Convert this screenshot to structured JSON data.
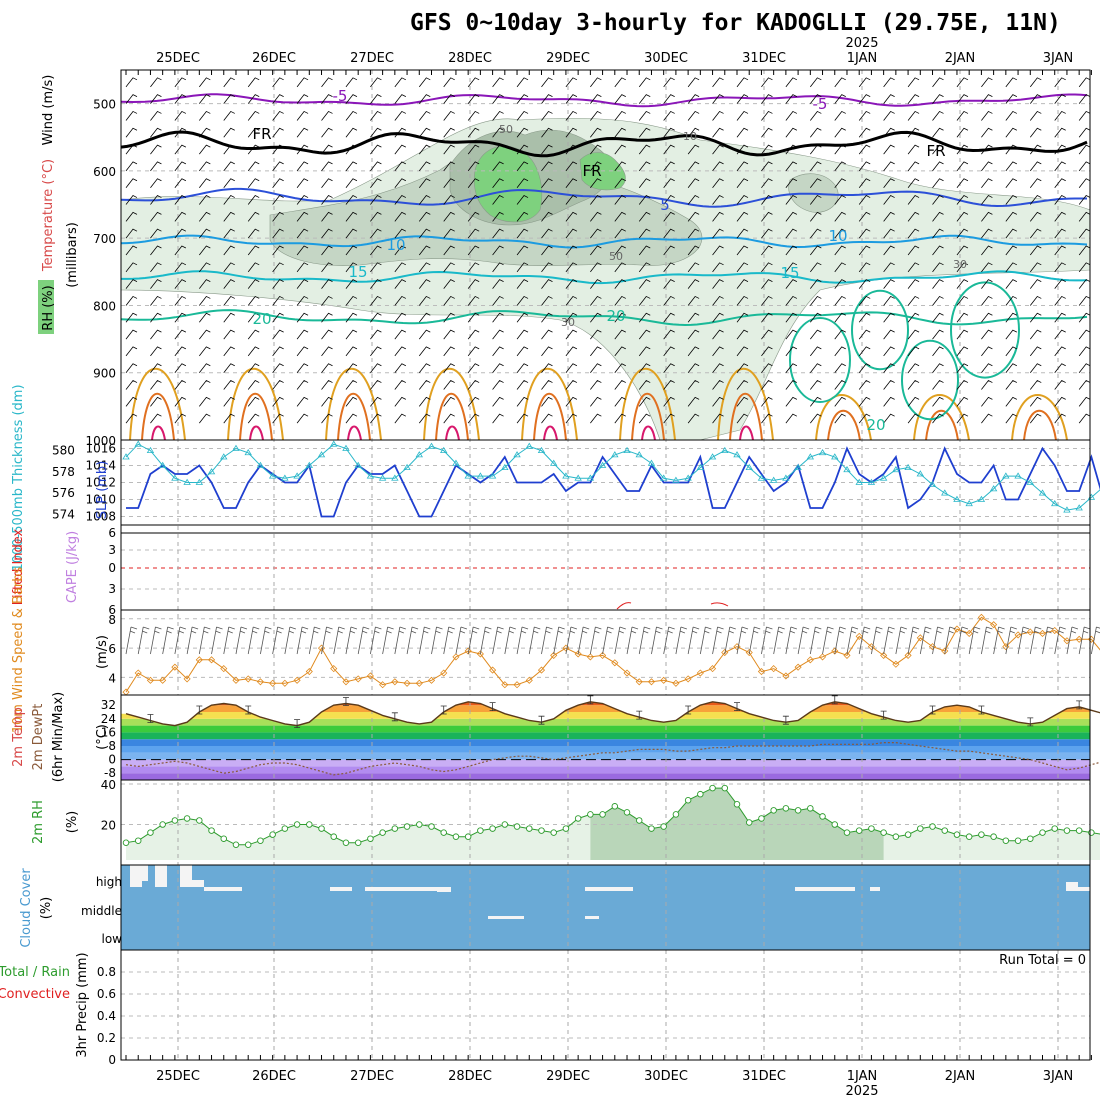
{
  "title": "GFS 0~10day 3-hourly for KADOGLLI (29.75E, 11N)",
  "year_label": "2025",
  "run_total": "Run Total = 0",
  "dates": [
    "25DEC",
    "26DEC",
    "27DEC",
    "28DEC",
    "29DEC",
    "30DEC",
    "31DEC",
    "1JAN",
    "2JAN",
    "3JAN"
  ],
  "panel_labels": {
    "sounding": [
      "Wind (m/s)",
      "Temperature (°C)",
      "RH (%)",
      "(millibars)"
    ],
    "slp": [
      "1000-500mb Thickness (dm)",
      "SLP (mb)"
    ],
    "cape": [
      "Lifted Index",
      "CAPE (J/kg)"
    ],
    "wind10": [
      "10m Wind Speed & Barbs",
      "(m/s)"
    ],
    "temp2m": [
      "2m Temp",
      "2m DewPt",
      "(6hr Min/Max)",
      "(°C)"
    ],
    "rh2m": [
      "2m RH",
      "(%)"
    ],
    "cloud": [
      "Cloud Cover",
      "(%)"
    ],
    "precip": [
      "Total / Rain",
      "Convective",
      "3hr Precip (mm)"
    ]
  },
  "colors": {
    "rh": "#7ed17e",
    "temp_contour": "#2c50d8",
    "freezing": "#000000",
    "slp": "#1f3fcf",
    "thickness": "#2ab7c9",
    "wind10": "#e08a1e",
    "rh2m": "#2e9c2e",
    "cloud": "#6aaad6",
    "lifted": "#e02020",
    "cape": "#c080e0"
  },
  "chart_data": [
    {
      "type": "heatmap",
      "name": "sounding",
      "y_axis": "pressure (millibars)",
      "ylim": [
        1000,
        450
      ],
      "yticks": [
        500,
        600,
        700,
        800,
        900,
        1000
      ],
      "contour_labels": [
        "-5",
        "FR",
        "-5",
        "FR",
        "FR",
        "5",
        "10",
        "10",
        "15",
        "15",
        "20",
        "20",
        "20",
        "50",
        "50",
        "30",
        "30",
        "10"
      ]
    },
    {
      "type": "line",
      "name": "thickness_slp",
      "ylim_thickness": [
        573,
        581
      ],
      "yticks_thickness": [
        "580",
        "578",
        "576",
        "574"
      ],
      "ylim_slp": [
        1007,
        1017
      ],
      "yticks_slp": [
        "1016",
        "1014",
        "1012",
        "1010",
        "1008"
      ],
      "series": [
        {
          "name": "SLP",
          "values": [
            1009,
            1009,
            1013,
            1014,
            1013,
            1013,
            1014,
            1012,
            1009,
            1009,
            1012,
            1014,
            1013,
            1012,
            1012,
            1014,
            1008,
            1008,
            1012,
            1014,
            1013,
            1013,
            1014,
            1011,
            1008,
            1008,
            1011,
            1014,
            1013,
            1012,
            1013,
            1015,
            1012,
            1012,
            1012,
            1013,
            1011,
            1012,
            1012,
            1015,
            1013,
            1011,
            1011,
            1014,
            1012,
            1012,
            1012,
            1015,
            1009,
            1009,
            1012,
            1015,
            1013,
            1011,
            1012,
            1014,
            1009,
            1009,
            1012,
            1016,
            1013,
            1012,
            1013,
            1015,
            1009,
            1010,
            1012,
            1016,
            1013,
            1012,
            1012,
            1014,
            1010,
            1010,
            1013,
            1016,
            1014,
            1011,
            1011,
            1015,
            1010,
            1010,
            1012,
            1016,
            1013,
            1012,
            1012,
            1014,
            1009,
            1010,
            1012,
            1015,
            1014,
            1011,
            1011,
            1015
          ]
        },
        {
          "name": "Thickness",
          "values": [
            579.4,
            580.6,
            580.0,
            578.6,
            577.4,
            577.0,
            577.0,
            578.0,
            579.4,
            580.2,
            579.8,
            578.6,
            577.6,
            577.4,
            577.6,
            578.6,
            579.6,
            580.6,
            580.2,
            578.6,
            577.6,
            577.4,
            577.4,
            578.4,
            579.6,
            580.4,
            580.0,
            578.8,
            577.6,
            577.6,
            577.6,
            578.4,
            579.6,
            580.4,
            580.0,
            578.8,
            577.6,
            577.4,
            577.4,
            578.6,
            579.6,
            580.0,
            579.6,
            578.8,
            577.4,
            577.2,
            577.4,
            578.4,
            579.4,
            580.0,
            579.6,
            578.4,
            577.4,
            577.2,
            577.4,
            578.4,
            579.4,
            579.8,
            579.4,
            578.2,
            577.0,
            577.0,
            577.4,
            578.2,
            578.4,
            577.8,
            576.8,
            576.0,
            575.4,
            575.0,
            575.4,
            576.4,
            577.6,
            577.6,
            577.0,
            576.0,
            575.0,
            574.4,
            574.6,
            575.6,
            576.6,
            576.8,
            576.0,
            575.0,
            574.2,
            574.0,
            574.4,
            575.4,
            576.4,
            576.6,
            576.0,
            575.2,
            574.6,
            574.4,
            575.0,
            576.0
          ]
        }
      ]
    },
    {
      "type": "line",
      "name": "lifted_cape",
      "ylim": [
        6,
        -6
      ],
      "yticks": [
        "6",
        "3",
        "0",
        "3",
        "6"
      ],
      "series": []
    },
    {
      "type": "line",
      "name": "wind10",
      "ylim": [
        2.8,
        8.6
      ],
      "yticks": [
        "8",
        "6",
        "4"
      ],
      "series": [
        {
          "name": "10m Wind Speed",
          "values": [
            3.0,
            4.3,
            3.8,
            3.8,
            4.7,
            3.9,
            5.2,
            5.2,
            4.6,
            3.8,
            3.9,
            3.7,
            3.6,
            3.6,
            3.8,
            4.4,
            6.0,
            4.6,
            3.7,
            3.9,
            4.1,
            3.5,
            3.7,
            3.6,
            3.6,
            3.8,
            4.3,
            5.4,
            5.8,
            5.6,
            4.5,
            3.5,
            3.5,
            3.8,
            4.5,
            5.5,
            6.0,
            5.6,
            5.4,
            5.5,
            5.0,
            4.3,
            3.7,
            3.7,
            3.8,
            3.6,
            3.9,
            4.3,
            4.6,
            5.7,
            6.1,
            5.7,
            4.4,
            4.6,
            4.1,
            4.7,
            5.2,
            5.4,
            5.8,
            5.5,
            6.8,
            6.1,
            5.5,
            4.9,
            5.5,
            6.7,
            6.1,
            5.8,
            7.3,
            7.0,
            8.1,
            7.6,
            6.1,
            6.9,
            7.1,
            7.0,
            7.2,
            6.5,
            6.6,
            6.6,
            5.6,
            6.1,
            6.3,
            6.5,
            6.6,
            5.9,
            6.0,
            5.9,
            6.1,
            6.4,
            6.3,
            6.1,
            5.6,
            5.4,
            6.4,
            6.5
          ]
        }
      ]
    },
    {
      "type": "area",
      "name": "temp2m",
      "ylim": [
        -12,
        38
      ],
      "yticks": [
        "32",
        "24",
        "16",
        "8",
        "0",
        "-8"
      ],
      "series": [
        {
          "name": "2m Temp",
          "values": [
            27,
            25,
            23,
            21,
            20,
            22,
            28,
            32,
            33,
            32,
            28,
            25,
            23,
            21,
            20,
            22,
            28,
            32,
            33,
            32,
            29,
            26,
            24,
            22,
            21,
            22,
            28,
            32,
            34,
            33,
            30,
            27,
            25,
            23,
            22,
            24,
            29,
            32,
            34,
            33,
            30,
            27,
            25,
            23,
            22,
            23,
            28,
            32,
            34,
            33,
            30,
            27,
            25,
            23,
            22,
            23,
            28,
            32,
            34,
            33,
            30,
            27,
            25,
            23,
            22,
            23,
            28,
            31,
            32,
            31,
            28,
            26,
            24,
            22,
            21,
            22,
            26,
            30,
            31,
            29,
            27,
            25,
            23,
            21,
            20,
            21,
            25,
            29,
            31,
            30,
            27,
            25,
            23,
            21,
            20,
            21
          ]
        },
        {
          "name": "2m DewPt",
          "values": [
            -3,
            -4,
            -3,
            -2,
            -1,
            -2,
            -4,
            -6,
            -8,
            -7,
            -5,
            -3,
            -2,
            -2,
            -3,
            -5,
            -7,
            -9,
            -8,
            -6,
            -4,
            -3,
            -2,
            -3,
            -4,
            -6,
            -7,
            -6,
            -4,
            -2,
            0,
            1,
            2,
            2,
            1,
            0,
            1,
            2,
            3,
            4,
            4,
            5,
            6,
            6,
            6,
            5,
            5,
            6,
            7,
            7,
            8,
            8,
            8,
            8,
            8,
            8,
            8,
            9,
            9,
            9,
            9,
            9,
            10,
            10,
            9,
            8,
            7,
            6,
            5,
            5,
            4,
            3,
            2,
            1,
            0,
            -2,
            -4,
            -6,
            -5,
            -3,
            -1,
            0,
            -1,
            -3,
            -6,
            -8,
            -7,
            -5,
            -3,
            -2,
            -1,
            0,
            -1,
            -2,
            -3,
            -4
          ]
        }
      ]
    },
    {
      "type": "area",
      "name": "rh2m",
      "ylim": [
        0,
        42
      ],
      "yticks": [
        "40",
        "20"
      ],
      "series": [
        {
          "name": "2m RH",
          "values": [
            11,
            12,
            16,
            20,
            22,
            23,
            22,
            17,
            13,
            10,
            10,
            12,
            15,
            18,
            20,
            20,
            18,
            14,
            11,
            11,
            13,
            16,
            18,
            19,
            20,
            19,
            16,
            14,
            14,
            17,
            18,
            20,
            19,
            18,
            17,
            16,
            18,
            23,
            25,
            25,
            29,
            26,
            22,
            18,
            19,
            25,
            32,
            35,
            38,
            38,
            30,
            21,
            23,
            27,
            28,
            27,
            28,
            24,
            20,
            16,
            17,
            18,
            16,
            14,
            15,
            18,
            19,
            17,
            15,
            14,
            15,
            14,
            12,
            12,
            13,
            16,
            18,
            17,
            17,
            16,
            15,
            17,
            18,
            17,
            16,
            15,
            14,
            14,
            17,
            21,
            21,
            21,
            22,
            23,
            22,
            22
          ]
        }
      ]
    },
    {
      "type": "heatmap",
      "name": "cloud_cover",
      "yticks": [
        "high",
        "middle",
        "low"
      ]
    },
    {
      "type": "bar",
      "name": "precip",
      "ylim": [
        0,
        1.0
      ],
      "yticks": [
        "0.8",
        "0.6",
        "0.4",
        "0.2",
        "0"
      ],
      "values": []
    }
  ]
}
